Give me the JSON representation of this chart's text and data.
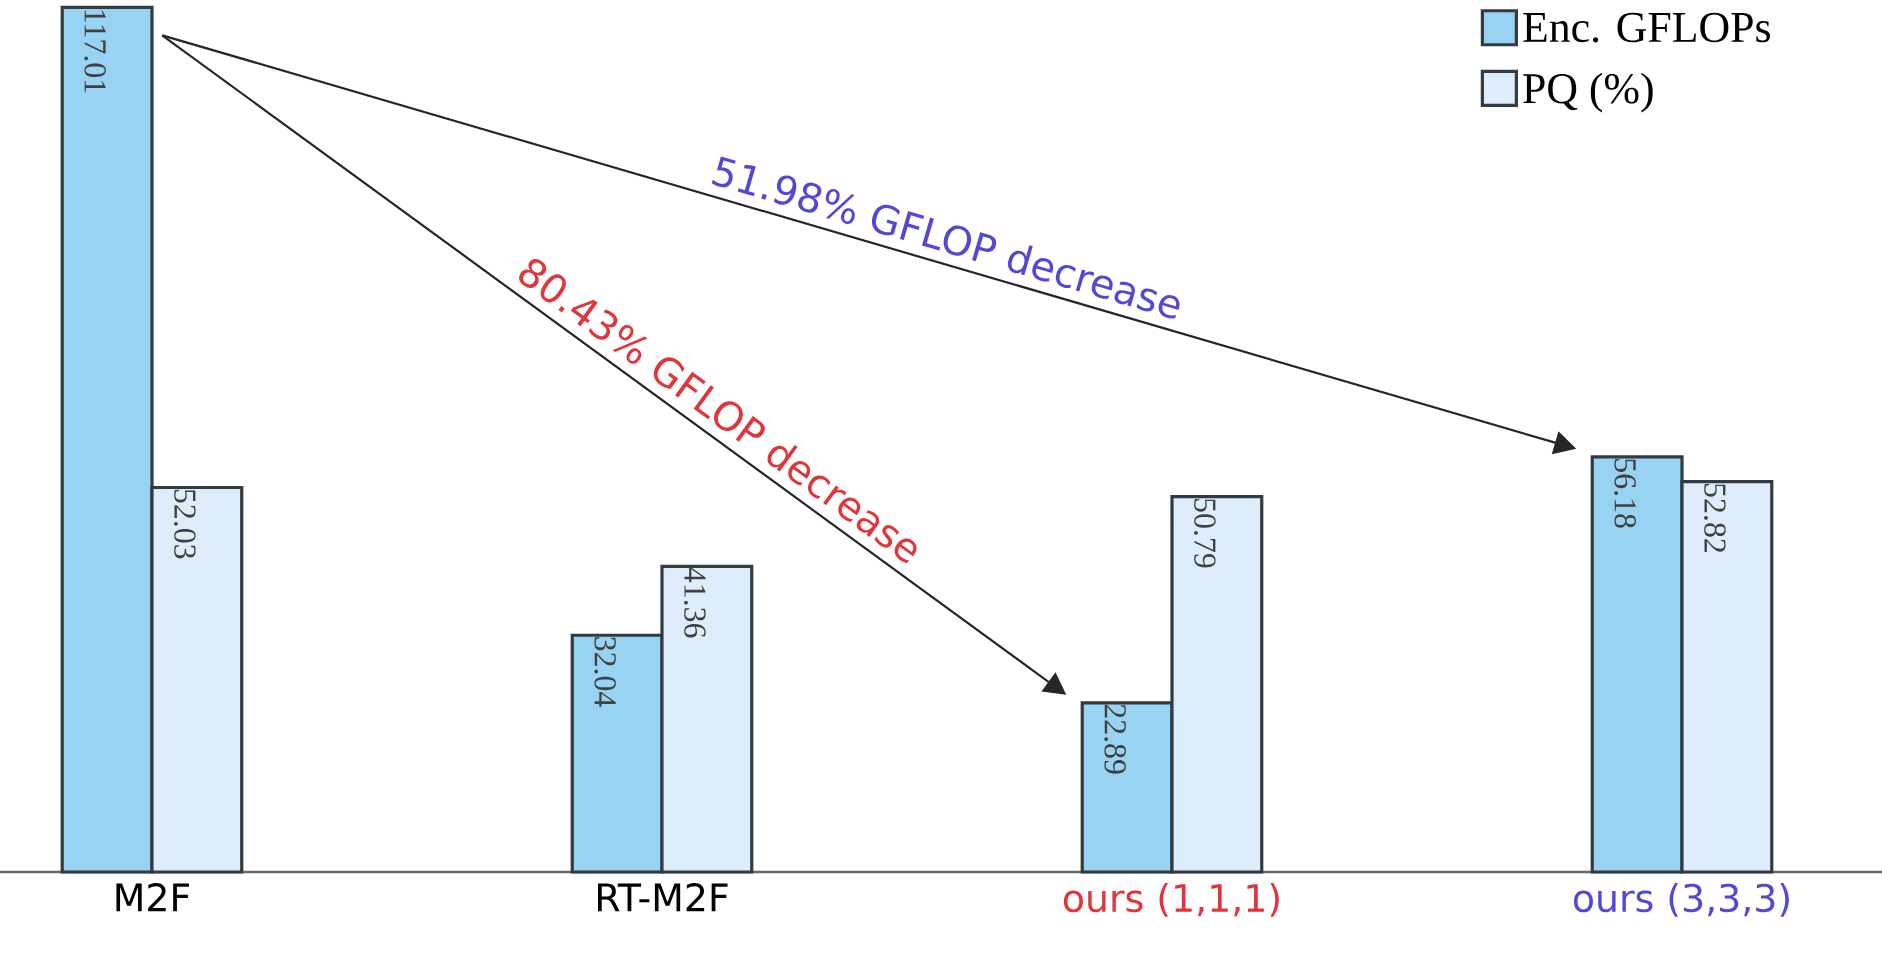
{
  "chart_data": {
    "type": "bar",
    "categories": [
      "M2F",
      "RT-M2F",
      "ours (1,1,1)",
      "ours (3,3,3)"
    ],
    "series": [
      {
        "name": "Enc. GFLOPs",
        "color": "#99d3f3",
        "values": [
          117.01,
          32.04,
          22.89,
          56.18
        ]
      },
      {
        "name": "PQ (%)",
        "color": "#ddedfb",
        "values": [
          52.03,
          41.36,
          50.79,
          52.82
        ]
      }
    ],
    "data_labels": true,
    "ylim": [
      0,
      118
    ],
    "tick_labels": "x",
    "legend": "top right",
    "annotations": [
      "51.98% GFLOP decrease",
      "80.43% GFLOP decrease"
    ]
  }
}
